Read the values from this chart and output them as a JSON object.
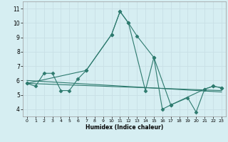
{
  "xlabel": "Humidex (Indice chaleur)",
  "background_color": "#d6eef2",
  "grid_color": "#c8dfe5",
  "line_color": "#2d7a6e",
  "xlim": [
    -0.5,
    23.5
  ],
  "ylim": [
    3.5,
    11.5
  ],
  "xticks": [
    0,
    1,
    2,
    3,
    4,
    5,
    6,
    7,
    8,
    9,
    10,
    11,
    12,
    13,
    14,
    15,
    16,
    17,
    18,
    19,
    20,
    21,
    22,
    23
  ],
  "yticks": [
    4,
    5,
    6,
    7,
    8,
    9,
    10,
    11
  ],
  "series": [
    {
      "x": [
        0,
        1,
        2,
        3,
        4,
        5,
        6,
        7,
        10,
        11,
        12,
        13,
        15,
        16,
        17,
        21,
        22,
        23
      ],
      "y": [
        5.8,
        5.6,
        6.5,
        6.5,
        5.3,
        5.3,
        6.1,
        6.7,
        9.2,
        10.8,
        10.0,
        9.1,
        7.6,
        4.0,
        4.3,
        5.4,
        5.6,
        5.5
      ],
      "marker": "D",
      "markersize": 2.5,
      "linewidth": 0.8
    },
    {
      "x": [
        0,
        7,
        10,
        11,
        12,
        14,
        15,
        17,
        19,
        20,
        21,
        22,
        23
      ],
      "y": [
        5.8,
        6.7,
        9.2,
        10.8,
        10.0,
        5.3,
        7.6,
        4.3,
        4.8,
        3.8,
        5.4,
        5.6,
        5.5
      ],
      "marker": "D",
      "markersize": 2.5,
      "linewidth": 0.8
    },
    {
      "x": [
        0,
        23
      ],
      "y": [
        6.0,
        5.2
      ],
      "marker": "",
      "markersize": 0,
      "linewidth": 0.8
    },
    {
      "x": [
        0,
        23
      ],
      "y": [
        5.8,
        5.3
      ],
      "marker": "",
      "markersize": 0,
      "linewidth": 0.8
    }
  ]
}
